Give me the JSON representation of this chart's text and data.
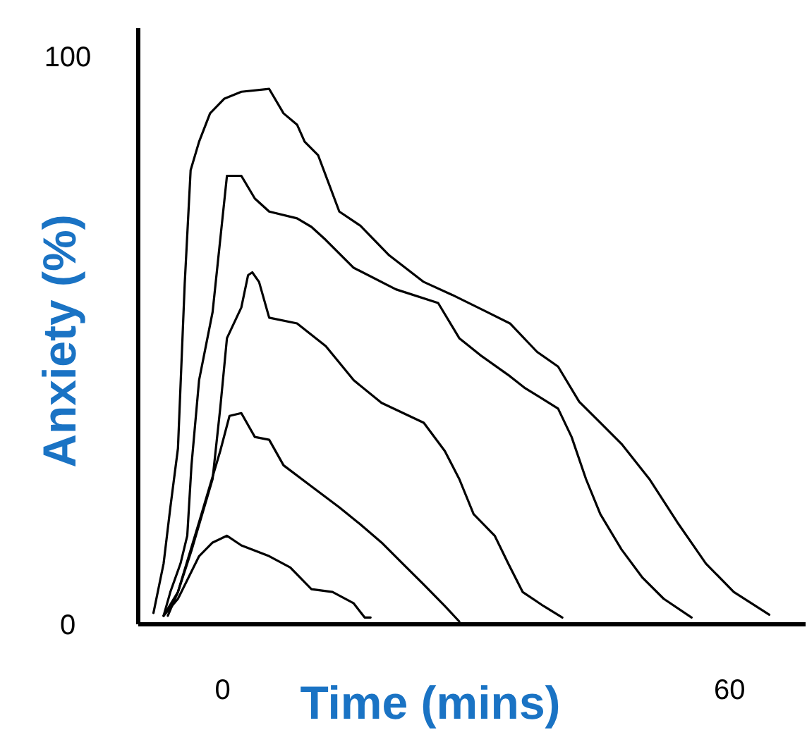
{
  "chart_data": {
    "type": "line",
    "xlabel": "Time (mins)",
    "ylabel": "Anxiety (%)",
    "xlim": [
      -10,
      69
    ],
    "ylim": [
      0,
      105
    ],
    "xticks": [
      0,
      60
    ],
    "yticks": [
      0,
      100
    ],
    "grid": false,
    "marker": "none",
    "line_style": "solid",
    "series": [
      {
        "color": "#000000",
        "x": [
          -8.2,
          -7,
          -6.2,
          -5.3,
          -4.5,
          -3.8,
          -2.8,
          -1.5,
          0.2,
          2.2,
          5.5,
          7.2,
          8.8,
          9.7,
          11.3,
          13.8,
          16.3,
          19.7,
          23.8,
          27.2,
          31.3,
          34,
          37.2,
          39.7,
          42.2,
          44.7,
          47.2,
          50.5,
          53.8,
          57.2,
          60.5,
          64.7
        ],
        "values": [
          2,
          10.7,
          20.6,
          31,
          60,
          80,
          85,
          90,
          92.6,
          93.8,
          94.3,
          90,
          88,
          85,
          82.6,
          72.7,
          70.2,
          65,
          60.3,
          58,
          55,
          53,
          48,
          45.4,
          39.2,
          35.5,
          31.8,
          25.6,
          18,
          10.7,
          5.7,
          1.7
        ]
      },
      {
        "color": "#000000",
        "x": [
          -7,
          -6.2,
          -5,
          -4.2,
          -3.7,
          -2.8,
          -1.2,
          0.5,
          2.2,
          3.8,
          5.5,
          8.8,
          10.5,
          12.2,
          15.5,
          20.5,
          25.5,
          28,
          30.5,
          34,
          35.7,
          39.7,
          41.3,
          43,
          44.7,
          47.2,
          49.7,
          52.2,
          55.5
        ],
        "values": [
          1.5,
          5.7,
          10.7,
          15.6,
          28,
          43,
          55,
          79,
          79,
          75,
          72.7,
          71.5,
          70,
          67.7,
          62.8,
          59,
          56.6,
          50.4,
          47.4,
          43.7,
          41.7,
          38,
          33,
          25.6,
          19.4,
          13.2,
          8.2,
          4.5,
          1.2
        ]
      },
      {
        "color": "#000000",
        "x": [
          -6.5,
          -5.3,
          -3.7,
          -1.2,
          -0.3,
          0.5,
          2.2,
          3,
          3.5,
          4.3,
          5.5,
          8.8,
          12.2,
          15.5,
          18.8,
          23.8,
          26.3,
          28,
          29.7,
          32.2,
          33.8,
          35.5,
          38,
          40.2
        ],
        "values": [
          1.5,
          5.7,
          13,
          25.6,
          38,
          50.4,
          55.8,
          61.5,
          62,
          60.3,
          54,
          53,
          49,
          43,
          39,
          35.5,
          30.5,
          25.6,
          19.4,
          15.6,
          10.7,
          5.7,
          3.2,
          1.2
        ]
      },
      {
        "color": "#000000",
        "x": [
          -7,
          -5.3,
          -2.8,
          -0.3,
          0.8,
          2.2,
          3.8,
          5.5,
          7.2,
          10.5,
          13.8,
          16.3,
          18.8,
          21.3,
          23.8,
          26.3,
          28
        ],
        "values": [
          1.5,
          5.7,
          18,
          30.5,
          36.7,
          37.2,
          33,
          32.5,
          28,
          24.3,
          20.6,
          17.6,
          14.4,
          10.7,
          7,
          3.2,
          0.5
        ]
      },
      {
        "color": "#000000",
        "x": [
          -7,
          -5.3,
          -2.8,
          -1.2,
          0.5,
          2.2,
          5.5,
          8,
          10.5,
          13,
          15.5,
          16.8,
          17.5
        ],
        "values": [
          1.5,
          4.5,
          12,
          14.4,
          15.6,
          13.9,
          12,
          10,
          6.2,
          5.7,
          3.7,
          1.2,
          1.2
        ]
      }
    ]
  }
}
